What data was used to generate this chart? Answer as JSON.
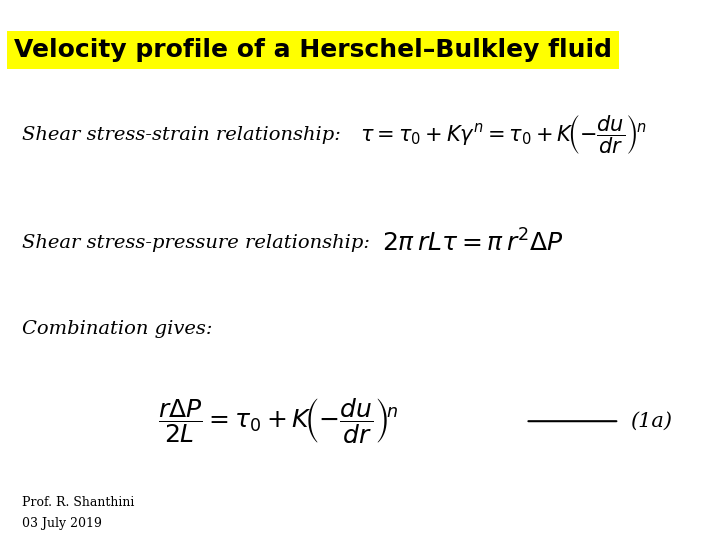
{
  "title": "Velocity profile of a Herschel–Bulkley fluid",
  "title_bg": "#FFFF00",
  "title_fontsize": 18,
  "title_bold": true,
  "bg_color": "#FFFFFF",
  "text_color": "#000000",
  "label1": "Shear stress-strain relationship:",
  "label2": "Shear stress-pressure relationship:",
  "label3": "Combination gives:",
  "eq3_label": "(1a)",
  "footer1": "Prof. R. Shanthini",
  "footer2": "03 July 2019",
  "label_fontsize": 14,
  "eq_fontsize": 15,
  "eq3_fontsize": 18,
  "footer_fontsize": 9
}
